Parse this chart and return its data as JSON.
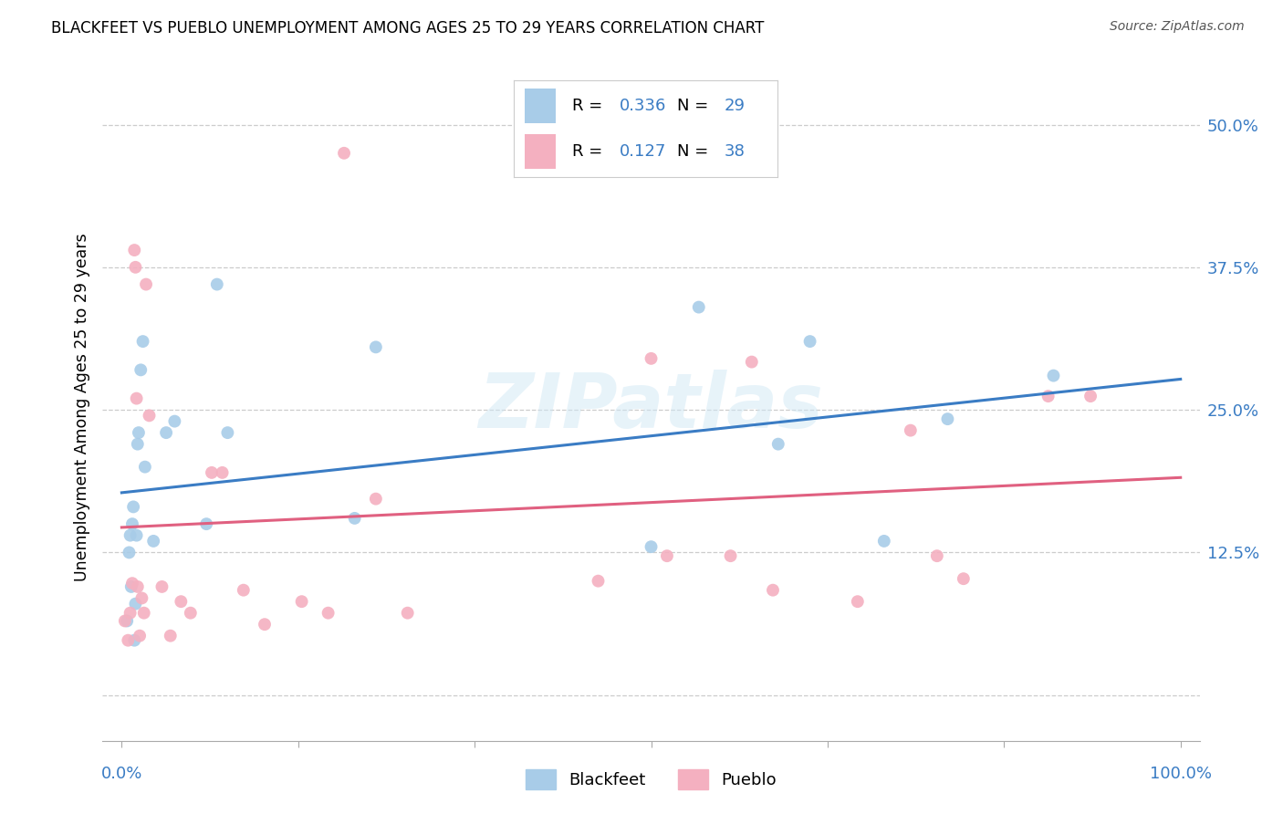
{
  "title": "BLACKFEET VS PUEBLO UNEMPLOYMENT AMONG AGES 25 TO 29 YEARS CORRELATION CHART",
  "source": "Source: ZipAtlas.com",
  "ylabel": "Unemployment Among Ages 25 to 29 years",
  "watermark": "ZIPatlas",
  "blackfeet_R": 0.336,
  "blackfeet_N": 29,
  "pueblo_R": 0.127,
  "pueblo_N": 38,
  "blackfeet_color": "#a8cce8",
  "pueblo_color": "#f4b0c0",
  "blackfeet_line_color": "#3a7cc4",
  "pueblo_line_color": "#e06080",
  "blackfeet_x": [
    0.005,
    0.007,
    0.008,
    0.009,
    0.01,
    0.011,
    0.012,
    0.013,
    0.014,
    0.015,
    0.016,
    0.018,
    0.02,
    0.022,
    0.03,
    0.042,
    0.05,
    0.08,
    0.09,
    0.1,
    0.22,
    0.24,
    0.5,
    0.545,
    0.62,
    0.65,
    0.72,
    0.78,
    0.88
  ],
  "blackfeet_y": [
    0.065,
    0.125,
    0.14,
    0.095,
    0.15,
    0.165,
    0.048,
    0.08,
    0.14,
    0.22,
    0.23,
    0.285,
    0.31,
    0.2,
    0.135,
    0.23,
    0.24,
    0.15,
    0.36,
    0.23,
    0.155,
    0.305,
    0.13,
    0.34,
    0.22,
    0.31,
    0.135,
    0.242,
    0.28
  ],
  "pueblo_x": [
    0.003,
    0.006,
    0.008,
    0.01,
    0.012,
    0.013,
    0.014,
    0.015,
    0.017,
    0.019,
    0.021,
    0.023,
    0.026,
    0.038,
    0.046,
    0.056,
    0.065,
    0.085,
    0.095,
    0.115,
    0.135,
    0.17,
    0.195,
    0.21,
    0.24,
    0.27,
    0.45,
    0.5,
    0.515,
    0.575,
    0.595,
    0.615,
    0.695,
    0.745,
    0.77,
    0.795,
    0.875,
    0.915
  ],
  "pueblo_y": [
    0.065,
    0.048,
    0.072,
    0.098,
    0.39,
    0.375,
    0.26,
    0.095,
    0.052,
    0.085,
    0.072,
    0.36,
    0.245,
    0.095,
    0.052,
    0.082,
    0.072,
    0.195,
    0.195,
    0.092,
    0.062,
    0.082,
    0.072,
    0.475,
    0.172,
    0.072,
    0.1,
    0.295,
    0.122,
    0.122,
    0.292,
    0.092,
    0.082,
    0.232,
    0.122,
    0.102,
    0.262,
    0.262
  ],
  "xlim": [
    -0.018,
    1.018
  ],
  "ylim": [
    -0.04,
    0.545
  ],
  "ytick_vals": [
    0.0,
    0.125,
    0.25,
    0.375,
    0.5
  ],
  "ytick_labels": [
    "",
    "12.5%",
    "25.0%",
    "37.5%",
    "50.0%"
  ],
  "xtick_vals": [
    0.0,
    0.1667,
    0.3333,
    0.5,
    0.6667,
    0.8333,
    1.0
  ],
  "marker_size": 100,
  "legend_R_text_color": "#3a7cc4",
  "legend_N_text_color": "#3a7cc4"
}
